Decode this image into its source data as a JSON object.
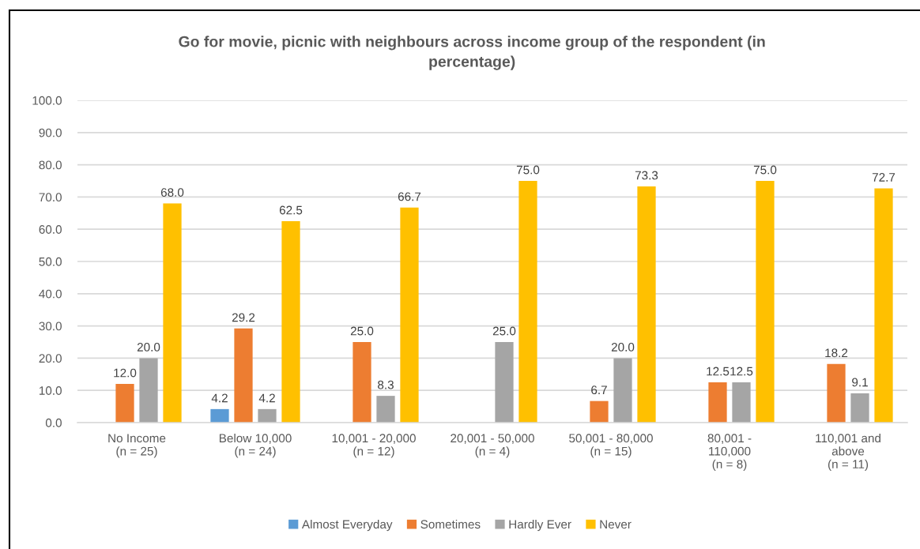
{
  "chart_data": {
    "type": "bar",
    "title": "Go for movie, picnic with neighbours across income group of the respondent (in\npercentage)",
    "categories": [
      "No Income\n(n = 25)",
      "Below 10,000\n(n = 24)",
      "10,001 - 20,000\n(n = 12)",
      "20,001 - 50,000\n(n = 4)",
      "50,001 - 80,000\n(n = 15)",
      "80,001 -\n110,000\n(n = 8)",
      "110,001 and\nabove\n(n = 11)"
    ],
    "series": [
      {
        "name": "Almost Everyday",
        "color": "#5b9bd5",
        "values": [
          null,
          4.2,
          null,
          null,
          null,
          null,
          null
        ],
        "value_labels": [
          null,
          "4.2",
          null,
          null,
          null,
          null,
          null
        ]
      },
      {
        "name": "Sometimes",
        "color": "#ed7d31",
        "values": [
          12.0,
          29.2,
          25.0,
          null,
          6.7,
          12.5,
          18.2
        ],
        "value_labels": [
          "12.0",
          "29.2",
          "25.0",
          null,
          "6.7",
          "12.5",
          "18.2"
        ]
      },
      {
        "name": "Hardly Ever",
        "color": "#a5a5a5",
        "values": [
          20.0,
          4.2,
          8.3,
          25.0,
          20.0,
          12.5,
          9.1
        ],
        "value_labels": [
          "20.0",
          "4.2",
          "8.3",
          "25.0",
          "20.0",
          "12.5",
          "9.1"
        ]
      },
      {
        "name": "Never",
        "color": "#ffc000",
        "values": [
          68.0,
          62.5,
          66.7,
          75.0,
          73.3,
          75.0,
          72.7
        ],
        "value_labels": [
          "68.0",
          "62.5",
          "66.7",
          "75.0",
          "73.3",
          "75.0",
          "72.7"
        ]
      }
    ],
    "ylim": [
      0,
      100
    ],
    "yticks": [
      {
        "value": 0,
        "label": "0.0"
      },
      {
        "value": 10,
        "label": "10.0"
      },
      {
        "value": 20,
        "label": "20.0"
      },
      {
        "value": 30,
        "label": "30.0"
      },
      {
        "value": 40,
        "label": "40.0"
      },
      {
        "value": 50,
        "label": "50.0"
      },
      {
        "value": 60,
        "label": "60.0"
      },
      {
        "value": 70,
        "label": "70.0"
      },
      {
        "value": 80,
        "label": "80.0"
      },
      {
        "value": 90,
        "label": "90.0"
      },
      {
        "value": 100,
        "label": "100.0"
      }
    ],
    "grid": "y",
    "legend": "bottom"
  }
}
